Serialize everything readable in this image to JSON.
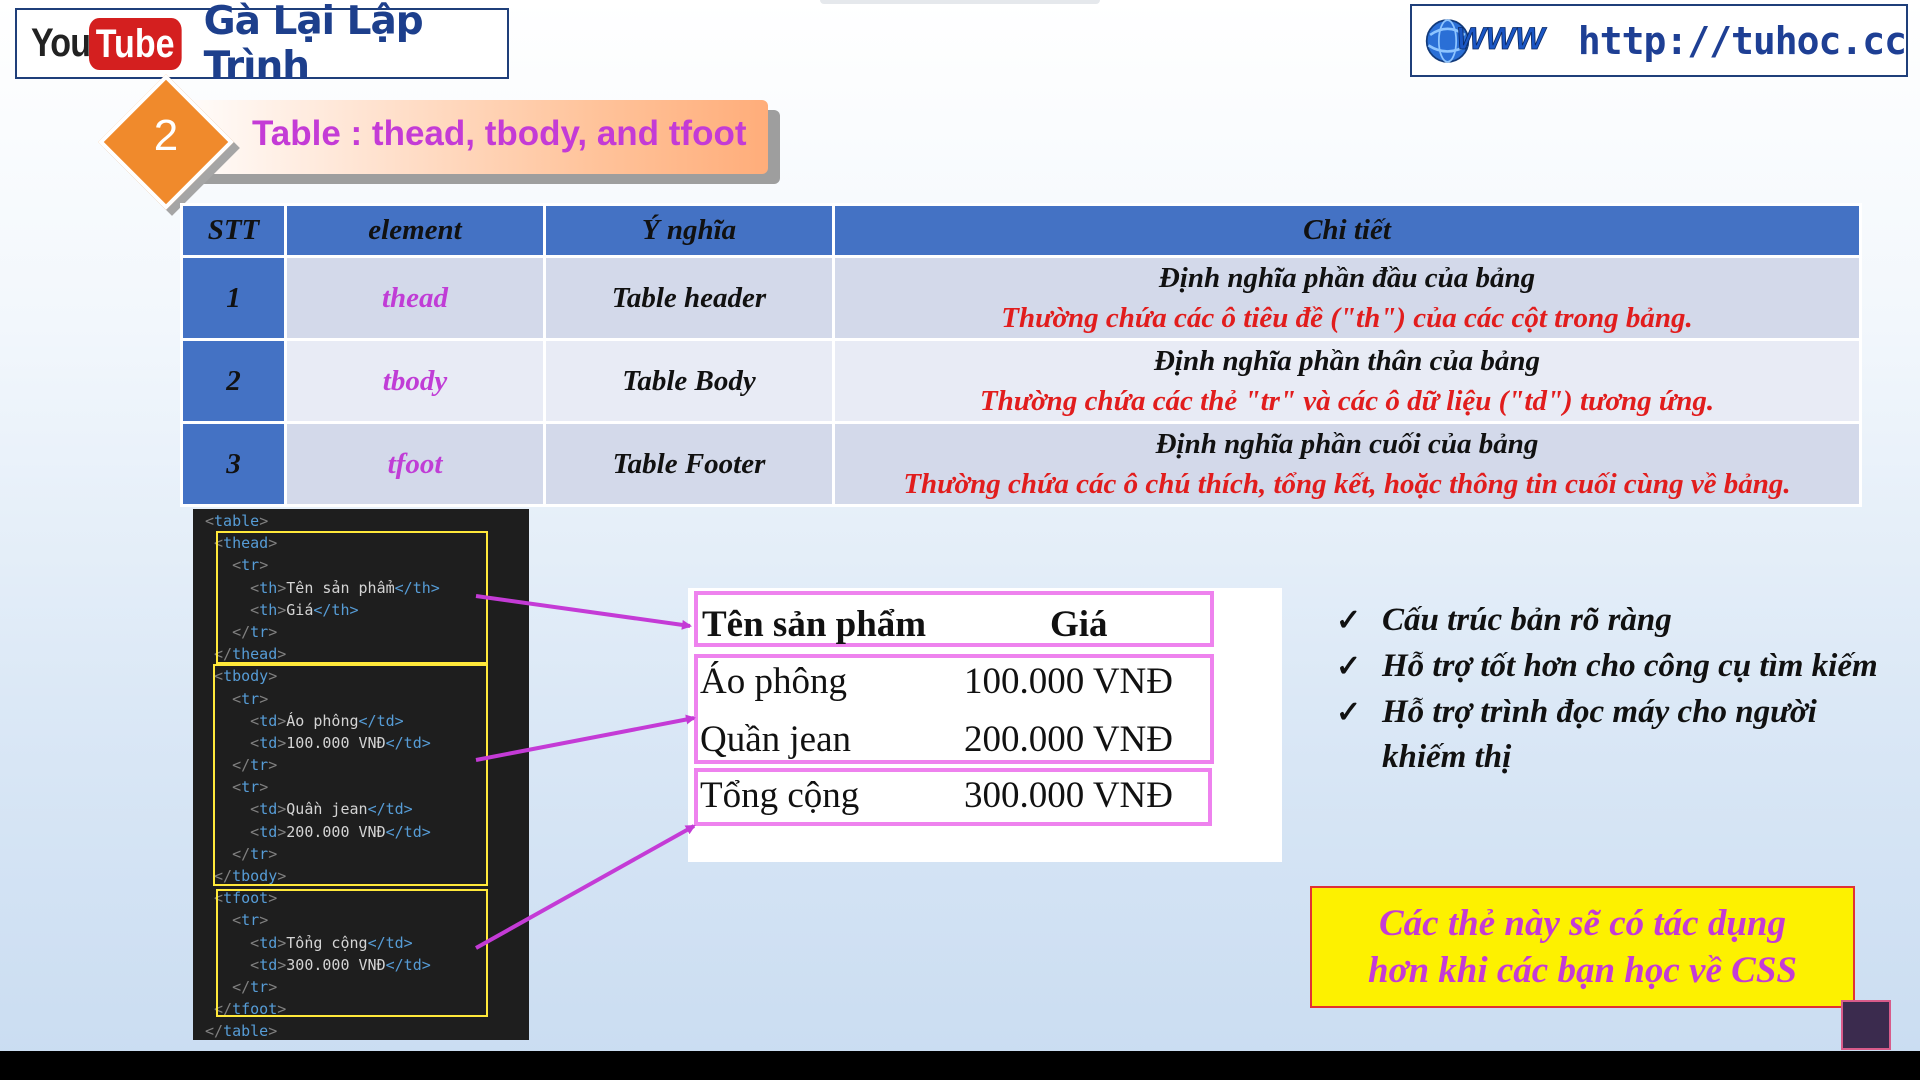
{
  "header": {
    "logo_you": "You",
    "logo_tube": "Tube",
    "channel_name": "Gà Lại Lập Trình",
    "url": "http://tuhoc.cc",
    "www_label": "WWW"
  },
  "section": {
    "number": "2",
    "title": "Table : thead, tbody, and tfoot"
  },
  "main_table": {
    "headers": [
      "STT",
      "element",
      "Ý nghĩa",
      "Chi tiết"
    ],
    "rows": [
      {
        "stt": "1",
        "element": "thead",
        "meaning": "Table header",
        "detail_line1": "Định nghĩa phần đầu của bảng",
        "detail_line2": "Thường chứa các ô tiêu đề (\"th\") của các cột trong bảng."
      },
      {
        "stt": "2",
        "element": "tbody",
        "meaning": "Table Body",
        "detail_line1": "Định nghĩa phần thân của bảng",
        "detail_line2": "Thường chứa các thẻ \"tr\" và các ô dữ liệu (\"td\") tương ứng."
      },
      {
        "stt": "3",
        "element": "tfoot",
        "meaning": "Table Footer",
        "detail_line1": "Định nghĩa phần cuối của bảng",
        "detail_line2": "Thường chứa các ô chú thích, tổng kết, hoặc thông tin cuối cùng về bảng."
      }
    ]
  },
  "code": {
    "lines": [
      {
        "indent": "",
        "open": "<",
        "tag": "table",
        "close": ">",
        "text": "",
        "end": ""
      },
      {
        "indent": " ",
        "open": "<",
        "tag": "thead",
        "close": ">",
        "text": "",
        "end": ""
      },
      {
        "indent": "   ",
        "open": "<",
        "tag": "tr",
        "close": ">",
        "text": "",
        "end": ""
      },
      {
        "indent": "     ",
        "open": "<",
        "tag": "th",
        "close": ">",
        "text": "Tên sản phẩm",
        "end": "</th>"
      },
      {
        "indent": "     ",
        "open": "<",
        "tag": "th",
        "close": ">",
        "text": "Giá",
        "end": "</th>"
      },
      {
        "indent": "   ",
        "open": "</",
        "tag": "tr",
        "close": ">",
        "text": "",
        "end": ""
      },
      {
        "indent": " ",
        "open": "</",
        "tag": "thead",
        "close": ">",
        "text": "",
        "end": ""
      },
      {
        "indent": " ",
        "open": "<",
        "tag": "tbody",
        "close": ">",
        "text": "",
        "end": ""
      },
      {
        "indent": "   ",
        "open": "<",
        "tag": "tr",
        "close": ">",
        "text": "",
        "end": ""
      },
      {
        "indent": "     ",
        "open": "<",
        "tag": "td",
        "close": ">",
        "text": "Áo phông",
        "end": "</td>"
      },
      {
        "indent": "     ",
        "open": "<",
        "tag": "td",
        "close": ">",
        "text": "100.000 VNĐ",
        "end": "</td>"
      },
      {
        "indent": "   ",
        "open": "</",
        "tag": "tr",
        "close": ">",
        "text": "",
        "end": ""
      },
      {
        "indent": "   ",
        "open": "<",
        "tag": "tr",
        "close": ">",
        "text": "",
        "end": ""
      },
      {
        "indent": "     ",
        "open": "<",
        "tag": "td",
        "close": ">",
        "text": "Quần jean",
        "end": "</td>"
      },
      {
        "indent": "     ",
        "open": "<",
        "tag": "td",
        "close": ">",
        "text": "200.000 VNĐ",
        "end": "</td>"
      },
      {
        "indent": "   ",
        "open": "</",
        "tag": "tr",
        "close": ">",
        "text": "",
        "end": ""
      },
      {
        "indent": " ",
        "open": "</",
        "tag": "tbody",
        "close": ">",
        "text": "",
        "end": ""
      },
      {
        "indent": " ",
        "open": "<",
        "tag": "tfoot",
        "close": ">",
        "text": "",
        "end": ""
      },
      {
        "indent": "   ",
        "open": "<",
        "tag": "tr",
        "close": ">",
        "text": "",
        "end": ""
      },
      {
        "indent": "     ",
        "open": "<",
        "tag": "td",
        "close": ">",
        "text": "Tổng cộng",
        "end": "</td>"
      },
      {
        "indent": "     ",
        "open": "<",
        "tag": "td",
        "close": ">",
        "text": "300.000 VNĐ",
        "end": "</td>"
      },
      {
        "indent": "   ",
        "open": "</",
        "tag": "tr",
        "close": ">",
        "text": "",
        "end": ""
      },
      {
        "indent": " ",
        "open": "</",
        "tag": "tfoot",
        "close": ">",
        "text": "",
        "end": ""
      },
      {
        "indent": "",
        "open": "</",
        "tag": "table",
        "close": ">",
        "text": "",
        "end": ""
      }
    ]
  },
  "rendered_table": {
    "head": {
      "col1": "Tên sản phẩm",
      "col2": "Giá"
    },
    "body": [
      {
        "col1": "Áo phông",
        "col2": "100.000 VNĐ"
      },
      {
        "col1": "Quần jean",
        "col2": "200.000 VNĐ"
      }
    ],
    "foot": {
      "col1": "Tổng cộng",
      "col2": "300.000 VNĐ"
    }
  },
  "bullets": {
    "check": "✓",
    "items": [
      "Cấu trúc bản rõ ràng",
      "Hỗ trợ tốt hơn cho công cụ tìm kiếm",
      "Hỗ trợ trình đọc máy cho người khiếm thị"
    ]
  },
  "note": {
    "line1": "Các thẻ này sẽ có tác dụng",
    "line2": "hơn khi các bạn học về CSS"
  },
  "colors": {
    "accent_orange": "#f08a2c",
    "header_blue": "#4472c4",
    "magenta": "#c03dd6",
    "red": "#e11d1d",
    "highlight_yellow": "#fdf100"
  }
}
